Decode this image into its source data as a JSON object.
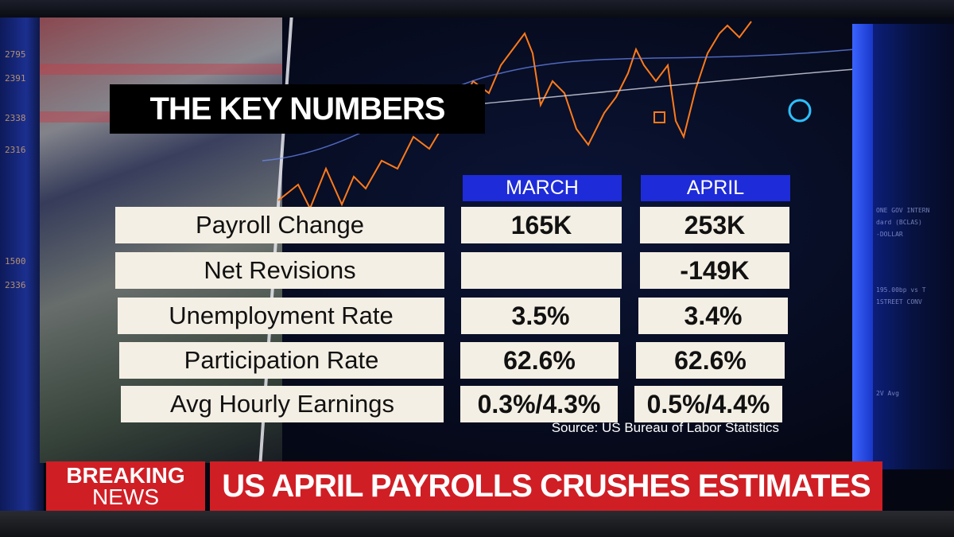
{
  "title": "THE KEY NUMBERS",
  "table": {
    "columns": [
      "MARCH",
      "APRIL"
    ],
    "rows": [
      {
        "label": "Payroll Change",
        "march": "165K",
        "april": "253K"
      },
      {
        "label": "Net Revisions",
        "march": "",
        "april": "-149K"
      },
      {
        "label": "Unemployment Rate",
        "march": "3.5%",
        "april": "3.4%"
      },
      {
        "label": "Participation Rate",
        "march": "62.6%",
        "april": "62.6%"
      },
      {
        "label": "Avg Hourly Earnings",
        "march": "0.3%/4.3%",
        "april": "0.5%/4.4%"
      }
    ]
  },
  "source": "Source: US Bureau of Labor Statistics",
  "lower_third": {
    "tag_line1": "BREAKING",
    "tag_line2": "NEWS",
    "headline": "US APRIL PAYROLLS CRUSHES ESTIMATES"
  },
  "colors": {
    "header_blue": "#1e2bd8",
    "cell_bg": "#f4efe4",
    "breaking_red": "#d01e25",
    "chart_orange": "#ff7a1a"
  }
}
